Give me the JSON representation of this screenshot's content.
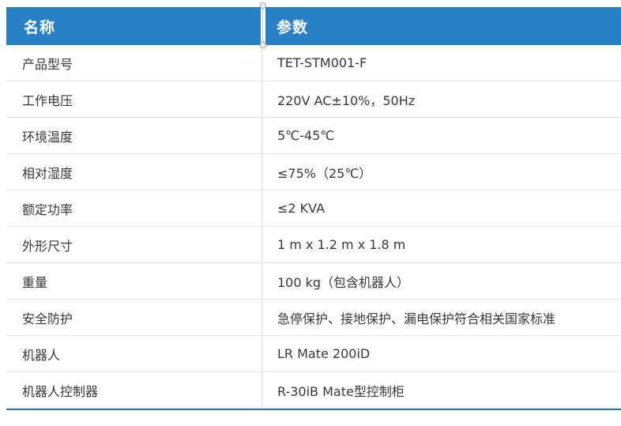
{
  "theme": {
    "header_bg": "#2881c5",
    "header_text": "#ffffff",
    "bottom_border": "#2e74ae",
    "row_divider": "#e4e4e4",
    "column_divider": "#dcdcdc",
    "body_text": "#383838"
  },
  "table": {
    "columns": [
      {
        "label": "名称"
      },
      {
        "label": "参数"
      }
    ],
    "rows": [
      {
        "name": "产品型号",
        "value": "TET-STM001-F"
      },
      {
        "name": "工作电压",
        "value": "220V AC±10%，50Hz"
      },
      {
        "name": "环境温度",
        "value": "5℃-45℃"
      },
      {
        "name": "相对湿度",
        "value": "≤75%（25℃）"
      },
      {
        "name": "额定功率",
        "value": "≤2 KVA"
      },
      {
        "name": "外形尺寸",
        "value": "1 m x 1.2 m x 1.8 m"
      },
      {
        "name": "重量",
        "value": "100 kg（包含机器人）"
      },
      {
        "name": "安全防护",
        "value": "急停保护、接地保护、漏电保护符合相关国家标准"
      },
      {
        "name": "机器人",
        "value": "LR Mate 200iD"
      },
      {
        "name": "机器人控制器",
        "value": "R-30iB Mate型控制柜"
      }
    ]
  }
}
